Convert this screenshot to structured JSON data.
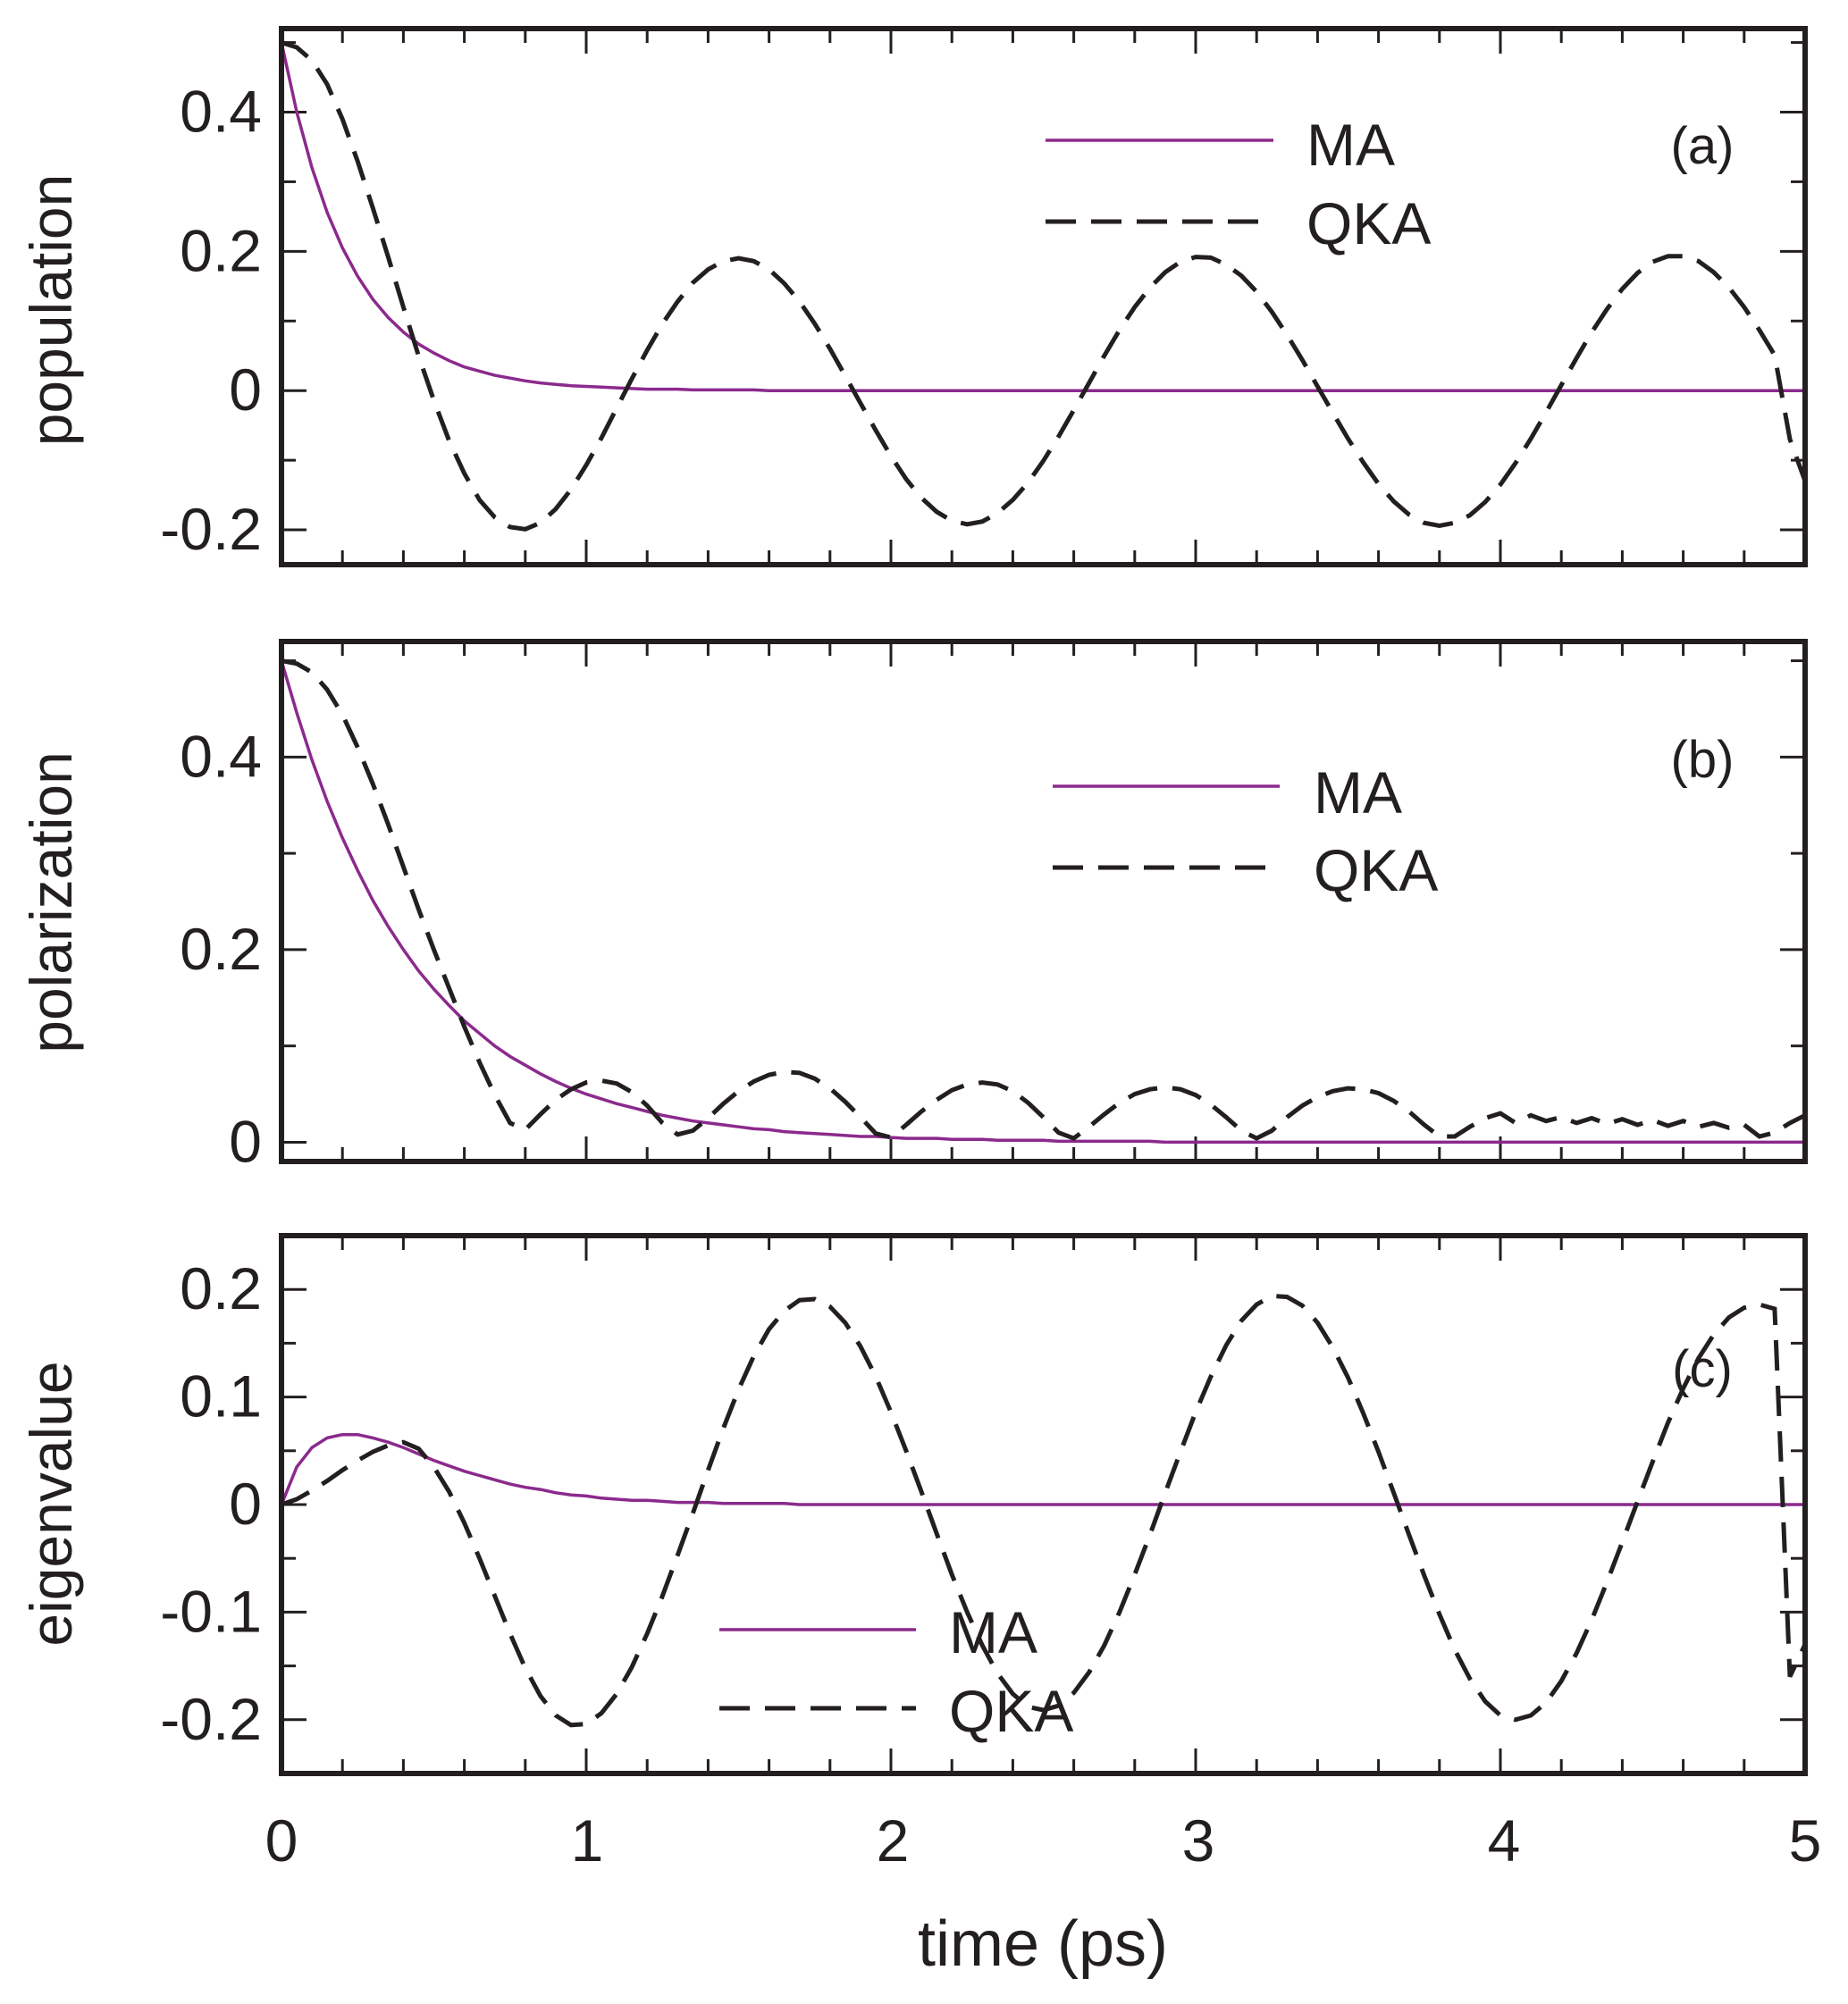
{
  "colors": {
    "ma": "#8b2a8c",
    "qka": "#231f20",
    "axis": "#231f20"
  },
  "chart_data": {
    "type": "line",
    "x": [
      0,
      0.05,
      0.1,
      0.15,
      0.2,
      0.25,
      0.3,
      0.35,
      0.4,
      0.45,
      0.5,
      0.55,
      0.6,
      0.65,
      0.7,
      0.75,
      0.8,
      0.85,
      0.9,
      0.95,
      1.0,
      1.05,
      1.1,
      1.15,
      1.2,
      1.25,
      1.3,
      1.35,
      1.4,
      1.45,
      1.5,
      1.55,
      1.6,
      1.65,
      1.7,
      1.75,
      1.8,
      1.85,
      1.9,
      1.95,
      2.0,
      2.05,
      2.1,
      2.15,
      2.2,
      2.25,
      2.3,
      2.35,
      2.4,
      2.45,
      2.5,
      2.55,
      2.6,
      2.65,
      2.7,
      2.75,
      2.8,
      2.85,
      2.9,
      2.95,
      3.0,
      3.05,
      3.1,
      3.15,
      3.2,
      3.25,
      3.3,
      3.35,
      3.4,
      3.45,
      3.5,
      3.55,
      3.6,
      3.65,
      3.7,
      3.75,
      3.8,
      3.85,
      3.9,
      3.95,
      4.0,
      4.05,
      4.1,
      4.15,
      4.2,
      4.25,
      4.3,
      4.35,
      4.4,
      4.45,
      4.5,
      4.55,
      4.6,
      4.65,
      4.7,
      4.75,
      4.8,
      4.85,
      4.9,
      4.95,
      5.0
    ],
    "xlabel": "time (ps)",
    "xlim": [
      0,
      5
    ],
    "xticks": [
      "0",
      "1",
      "2",
      "3",
      "4",
      "5"
    ],
    "panels": [
      {
        "tag": "(a)",
        "ylabel": "population",
        "ylim": [
          -0.25,
          0.52
        ],
        "yticks": [
          "-0.2",
          "0",
          "0.2",
          "0.4"
        ],
        "ytick_values": [
          -0.2,
          0,
          0.2,
          0.4
        ],
        "legend": {
          "position": "top-right",
          "ma": "MA",
          "qka": "QKA"
        },
        "series": [
          {
            "name": "MA",
            "values": [
              0.5,
              0.4,
              0.32,
              0.256,
              0.205,
              0.164,
              0.131,
              0.105,
              0.084,
              0.067,
              0.054,
              0.043,
              0.034,
              0.028,
              0.022,
              0.018,
              0.014,
              0.011,
              0.009,
              0.007,
              0.006,
              0.005,
              0.004,
              0.003,
              0.002,
              0.002,
              0.002,
              0.001,
              0.001,
              0.001,
              0.001,
              0.001,
              0,
              0,
              0,
              0,
              0,
              0,
              0,
              0,
              0,
              0,
              0,
              0,
              0,
              0,
              0,
              0,
              0,
              0,
              0,
              0,
              0,
              0,
              0,
              0,
              0,
              0,
              0,
              0,
              0,
              0,
              0,
              0,
              0,
              0,
              0,
              0,
              0,
              0,
              0,
              0,
              0,
              0,
              0,
              0,
              0,
              0,
              0,
              0,
              0,
              0,
              0,
              0,
              0,
              0,
              0,
              0,
              0,
              0,
              0,
              0,
              0,
              0,
              0,
              0,
              0,
              0,
              0,
              0,
              0
            ]
          },
          {
            "name": "QKA",
            "values": [
              0.5,
              0.493,
              0.474,
              0.44,
              0.39,
              0.329,
              0.262,
              0.192,
              0.12,
              0.05,
              -0.014,
              -0.072,
              -0.119,
              -0.157,
              -0.182,
              -0.196,
              -0.199,
              -0.19,
              -0.17,
              -0.142,
              -0.107,
              -0.068,
              -0.025,
              0.017,
              0.058,
              0.096,
              0.128,
              0.155,
              0.174,
              0.186,
              0.19,
              0.186,
              0.174,
              0.154,
              0.128,
              0.096,
              0.06,
              0.021,
              -0.018,
              -0.057,
              -0.094,
              -0.127,
              -0.154,
              -0.174,
              -0.187,
              -0.192,
              -0.188,
              -0.176,
              -0.157,
              -0.132,
              -0.101,
              -0.066,
              -0.028,
              0.011,
              0.05,
              0.087,
              0.12,
              0.148,
              0.17,
              0.185,
              0.192,
              0.191,
              0.181,
              0.165,
              0.142,
              0.113,
              0.08,
              0.044,
              0.006,
              -0.032,
              -0.069,
              -0.103,
              -0.134,
              -0.159,
              -0.178,
              -0.19,
              -0.194,
              -0.19,
              -0.179,
              -0.16,
              -0.135,
              -0.104,
              -0.069,
              -0.031,
              0.008,
              0.047,
              0.084,
              0.117,
              0.146,
              0.169,
              0.185,
              0.193,
              0.193,
              0.186,
              0.17,
              0.148,
              0.12,
              0.087,
              0.051,
              -0.07,
              -0.13
            ]
          }
        ]
      },
      {
        "tag": "(b)",
        "ylabel": "polarization",
        "ylim": [
          -0.02,
          0.52
        ],
        "yticks": [
          "0",
          "0.2",
          "0.4"
        ],
        "ytick_values": [
          0,
          0.2,
          0.4
        ],
        "legend": {
          "position": "top-right",
          "ma": "MA",
          "qka": "QKA"
        },
        "series": [
          {
            "name": "MA",
            "values": [
              0.5,
              0.446,
              0.397,
              0.354,
              0.316,
              0.282,
              0.251,
              0.224,
              0.2,
              0.178,
              0.159,
              0.142,
              0.126,
              0.113,
              0.1,
              0.089,
              0.08,
              0.071,
              0.063,
              0.056,
              0.05,
              0.045,
              0.04,
              0.036,
              0.032,
              0.028,
              0.025,
              0.022,
              0.02,
              0.018,
              0.016,
              0.014,
              0.013,
              0.011,
              0.01,
              0.009,
              0.008,
              0.007,
              0.006,
              0.006,
              0.005,
              0.004,
              0.004,
              0.004,
              0.003,
              0.003,
              0.003,
              0.002,
              0.002,
              0.002,
              0.002,
              0.001,
              0.001,
              0.001,
              0.001,
              0.001,
              0.001,
              0.001,
              0,
              0,
              0,
              0,
              0,
              0,
              0,
              0,
              0,
              0,
              0,
              0,
              0,
              0,
              0,
              0,
              0,
              0,
              0,
              0,
              0,
              0,
              0,
              0,
              0,
              0,
              0,
              0,
              0,
              0,
              0,
              0,
              0,
              0,
              0,
              0,
              0,
              0,
              0,
              0,
              0,
              0,
              0
            ]
          },
          {
            "name": "QKA",
            "values": [
              0.5,
              0.497,
              0.488,
              0.47,
              0.444,
              0.41,
              0.372,
              0.33,
              0.286,
              0.242,
              0.2,
              0.16,
              0.12,
              0.083,
              0.049,
              0.02,
              0.013,
              0.029,
              0.044,
              0.055,
              0.062,
              0.064,
              0.061,
              0.052,
              0.038,
              0.02,
              0.008,
              0.012,
              0.025,
              0.04,
              0.053,
              0.063,
              0.07,
              0.073,
              0.072,
              0.066,
              0.056,
              0.042,
              0.026,
              0.009,
              0.005,
              0.018,
              0.032,
              0.044,
              0.054,
              0.06,
              0.062,
              0.06,
              0.053,
              0.041,
              0.026,
              0.01,
              0.004,
              0.016,
              0.029,
              0.041,
              0.05,
              0.055,
              0.057,
              0.055,
              0.049,
              0.039,
              0.026,
              0.012,
              0.004,
              0.012,
              0.026,
              0.038,
              0.047,
              0.053,
              0.056,
              0.055,
              0.051,
              0.043,
              0.032,
              0.018,
              0.006,
              0.006,
              0.016,
              0.025,
              0.03,
              0.02,
              0.028,
              0.022,
              0.026,
              0.02,
              0.025,
              0.019,
              0.024,
              0.018,
              0.023,
              0.017,
              0.022,
              0.016,
              0.02,
              0.015,
              0.018,
              0.006,
              0.01,
              0.02,
              0.028
            ]
          }
        ]
      },
      {
        "tag": "(c)",
        "ylabel": "eigenvalue",
        "ylim": [
          -0.25,
          0.25
        ],
        "yticks": [
          "-0.2",
          "-0.1",
          "0",
          "0.1",
          "0.2"
        ],
        "ytick_values": [
          -0.2,
          -0.1,
          0,
          0.1,
          0.2
        ],
        "legend": {
          "position": "bottom-center",
          "ma": "MA",
          "qka": "QKA"
        },
        "series": [
          {
            "name": "MA",
            "values": [
              0,
              0.035,
              0.053,
              0.062,
              0.065,
              0.065,
              0.062,
              0.058,
              0.053,
              0.047,
              0.041,
              0.036,
              0.031,
              0.027,
              0.023,
              0.019,
              0.016,
              0.014,
              0.011,
              0.009,
              0.008,
              0.006,
              0.005,
              0.004,
              0.004,
              0.003,
              0.002,
              0.002,
              0.002,
              0.001,
              0.001,
              0.001,
              0.001,
              0.001,
              0,
              0,
              0,
              0,
              0,
              0,
              0,
              0,
              0,
              0,
              0,
              0,
              0,
              0,
              0,
              0,
              0,
              0,
              0,
              0,
              0,
              0,
              0,
              0,
              0,
              0,
              0,
              0,
              0,
              0,
              0,
              0,
              0,
              0,
              0,
              0,
              0,
              0,
              0,
              0,
              0,
              0,
              0,
              0,
              0,
              0,
              0,
              0,
              0,
              0,
              0,
              0,
              0,
              0,
              0,
              0,
              0,
              0,
              0,
              0,
              0,
              0,
              0,
              0,
              0,
              0,
              0
            ]
          },
          {
            "name": "QKA",
            "values": [
              0,
              0.005,
              0.013,
              0.022,
              0.032,
              0.041,
              0.049,
              0.055,
              0.058,
              0.052,
              0.035,
              0.012,
              -0.017,
              -0.05,
              -0.085,
              -0.12,
              -0.152,
              -0.178,
              -0.196,
              -0.205,
              -0.204,
              -0.194,
              -0.176,
              -0.151,
              -0.12,
              -0.085,
              -0.047,
              -0.008,
              0.032,
              0.071,
              0.107,
              0.138,
              0.163,
              0.18,
              0.19,
              0.191,
              0.184,
              0.169,
              0.147,
              0.119,
              0.086,
              0.05,
              0.012,
              -0.027,
              -0.065,
              -0.1,
              -0.131,
              -0.157,
              -0.176,
              -0.188,
              -0.191,
              -0.187,
              -0.175,
              -0.156,
              -0.131,
              -0.1,
              -0.065,
              -0.028,
              0.011,
              0.049,
              0.086,
              0.119,
              0.148,
              0.171,
              0.186,
              0.194,
              0.193,
              0.185,
              0.169,
              0.146,
              0.118,
              0.085,
              0.049,
              0.011,
              -0.028,
              -0.066,
              -0.102,
              -0.135,
              -0.162,
              -0.183,
              -0.196,
              -0.2,
              -0.196,
              -0.184,
              -0.164,
              -0.138,
              -0.107,
              -0.072,
              -0.035,
              0.003,
              0.04,
              0.076,
              0.108,
              0.136,
              0.158,
              0.174,
              0.183,
              0.186,
              0.182,
              -0.16,
              -0.13
            ]
          }
        ]
      }
    ]
  }
}
